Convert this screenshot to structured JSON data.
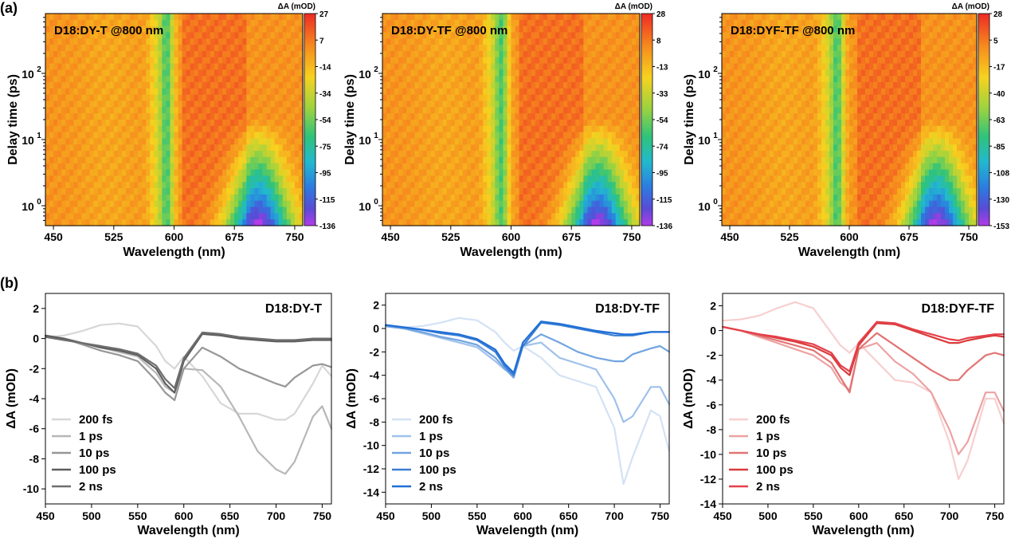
{
  "panel_labels": [
    "(a)",
    "(b)"
  ],
  "chart_data": [
    {
      "type": "heatmap",
      "title": "D18:DY-T @800 nm",
      "xlabel": "Wavelength (nm)",
      "ylabel": "Delay time (ps)",
      "xticks": [
        450,
        525,
        600,
        675,
        750
      ],
      "xlim": [
        440,
        760
      ],
      "yscale": "log",
      "yticks": [
        {
          "exp": 0,
          "value": 1
        },
        {
          "exp": 1,
          "value": 10
        },
        {
          "exp": 2,
          "value": 100
        }
      ],
      "yticks_label_base": "10",
      "ylim": [
        0.5,
        800
      ],
      "colorbar": {
        "label": "ΔA (mOD)",
        "ticks": [
          27,
          7,
          -14,
          -34,
          -54,
          -75,
          -95,
          -115,
          -136
        ]
      },
      "features": {
        "bleach_center": 591,
        "deep_center": 705,
        "deep_min": -136
      }
    },
    {
      "type": "heatmap",
      "title": "D18:DY-TF @800 nm",
      "xlabel": "Wavelength (nm)",
      "ylabel": "Delay time (ps)",
      "xticks": [
        450,
        525,
        600,
        675,
        750
      ],
      "xlim": [
        440,
        760
      ],
      "yscale": "log",
      "yticks": [
        {
          "exp": 0,
          "value": 1
        },
        {
          "exp": 1,
          "value": 10
        },
        {
          "exp": 2,
          "value": 100
        }
      ],
      "yticks_label_base": "10",
      "ylim": [
        0.5,
        800
      ],
      "colorbar": {
        "label": "ΔA (mOD)",
        "ticks": [
          28,
          8,
          -13,
          -33,
          -54,
          -74,
          -95,
          -115,
          -136
        ]
      },
      "features": {
        "bleach_center": 588,
        "deep_center": 708,
        "deep_min": -136
      }
    },
    {
      "type": "heatmap",
      "title": "D18:DYF-TF @800 nm",
      "xlabel": "Wavelength (nm)",
      "ylabel": "Delay time (ps)",
      "xticks": [
        450,
        525,
        600,
        675,
        750
      ],
      "xlim": [
        440,
        760
      ],
      "yscale": "log",
      "yticks": [
        {
          "exp": 0,
          "value": 1
        },
        {
          "exp": 1,
          "value": 10
        },
        {
          "exp": 2,
          "value": 100
        }
      ],
      "yticks_label_base": "10",
      "ylim": [
        0.5,
        800
      ],
      "colorbar": {
        "label": "ΔA (mOD)",
        "ticks": [
          28,
          5,
          -17,
          -40,
          -63,
          -85,
          -108,
          -130,
          -153
        ]
      },
      "features": {
        "bleach_center": 585,
        "deep_center": 710,
        "deep_min": -153
      }
    },
    {
      "type": "line",
      "title": "D18:DY-T",
      "xlabel": "Wavelength (nm)",
      "ylabel": "ΔA (mOD)",
      "xlim": [
        450,
        760
      ],
      "ylim": [
        -11,
        3
      ],
      "xticks": [
        450,
        500,
        550,
        600,
        650,
        700,
        750
      ],
      "yticks": [
        2,
        0,
        -2,
        -4,
        -6,
        -8,
        -10
      ],
      "legend_position": "bottom-left",
      "x": [
        450,
        470,
        490,
        510,
        530,
        550,
        570,
        580,
        590,
        600,
        620,
        640,
        660,
        680,
        700,
        710,
        720,
        740,
        750,
        760
      ],
      "series": [
        {
          "name": "200 fs",
          "color": "#d7d7d7",
          "values": [
            0.1,
            0.2,
            0.5,
            0.9,
            1.0,
            0.8,
            -0.5,
            -1.5,
            -2.0,
            -1.2,
            -2.5,
            -4.3,
            -5.0,
            -5.0,
            -5.4,
            -5.4,
            -5.0,
            -3.0,
            -1.8,
            -2.5
          ]
        },
        {
          "name": "1 ps",
          "color": "#b7b7b7",
          "values": [
            0.2,
            0.0,
            -0.3,
            -0.6,
            -0.9,
            -1.2,
            -2.3,
            -3.2,
            -3.6,
            -2.0,
            -2.1,
            -3.2,
            -5.2,
            -7.5,
            -8.7,
            -9.0,
            -8.2,
            -5.2,
            -4.5,
            -6.0
          ]
        },
        {
          "name": "10 ps",
          "color": "#979797",
          "values": [
            0.2,
            0.0,
            -0.4,
            -0.8,
            -1.1,
            -1.5,
            -2.8,
            -3.6,
            -4.1,
            -2.0,
            -0.6,
            -1.2,
            -2.0,
            -2.5,
            -3.0,
            -3.2,
            -2.6,
            -1.8,
            -1.7,
            -1.9
          ]
        },
        {
          "name": "100 ps",
          "color": "#5e5e5e",
          "values": [
            0.2,
            0.0,
            -0.3,
            -0.6,
            -0.8,
            -1.1,
            -2.0,
            -3.0,
            -3.6,
            -1.5,
            0.3,
            0.2,
            0.0,
            -0.1,
            -0.2,
            -0.2,
            -0.2,
            -0.1,
            -0.1,
            -0.1
          ]
        },
        {
          "name": "2 ns",
          "color": "#6e6e6e",
          "values": [
            0.1,
            -0.1,
            -0.3,
            -0.5,
            -0.7,
            -1.0,
            -1.8,
            -2.7,
            -3.3,
            -1.3,
            0.4,
            0.3,
            0.1,
            0.0,
            -0.1,
            -0.1,
            -0.1,
            0.0,
            0.0,
            0.0
          ]
        }
      ]
    },
    {
      "type": "line",
      "title": "D18:DY-TF",
      "xlabel": "Wavelength (nm)",
      "ylabel": "ΔA (mOD)",
      "xlim": [
        450,
        760
      ],
      "ylim": [
        -15,
        3
      ],
      "xticks": [
        450,
        500,
        550,
        600,
        650,
        700,
        750
      ],
      "yticks": [
        2,
        0,
        -2,
        -4,
        -6,
        -8,
        -10,
        -12,
        -14
      ],
      "legend_position": "bottom-left",
      "x": [
        450,
        470,
        490,
        510,
        530,
        550,
        570,
        580,
        590,
        600,
        620,
        640,
        660,
        680,
        700,
        710,
        720,
        740,
        750,
        760
      ],
      "series": [
        {
          "name": "200 fs",
          "color": "#d3e2f5",
          "values": [
            0.2,
            0.1,
            0.2,
            0.5,
            0.9,
            0.7,
            -0.3,
            -1.2,
            -1.9,
            -1.5,
            -2.5,
            -4.0,
            -4.5,
            -5.0,
            -8.5,
            -13.3,
            -11.0,
            -7.0,
            -7.5,
            -10.5
          ]
        },
        {
          "name": "1 ps",
          "color": "#9fc1eb",
          "values": [
            0.2,
            0.0,
            -0.4,
            -0.8,
            -1.2,
            -1.6,
            -2.8,
            -3.5,
            -4.0,
            -1.5,
            -1.2,
            -2.5,
            -3.0,
            -3.5,
            -6.0,
            -8.0,
            -7.5,
            -5.0,
            -5.0,
            -6.5
          ]
        },
        {
          "name": "10 ps",
          "color": "#72a4e0",
          "values": [
            0.2,
            0.0,
            -0.3,
            -0.7,
            -1.0,
            -1.4,
            -2.5,
            -3.4,
            -4.2,
            -1.5,
            -0.5,
            -1.2,
            -2.0,
            -2.5,
            -2.8,
            -2.8,
            -2.2,
            -1.7,
            -1.5,
            -2.0
          ]
        },
        {
          "name": "100 ps",
          "color": "#3c7fd3",
          "values": [
            0.3,
            0.1,
            -0.1,
            -0.4,
            -0.6,
            -1.0,
            -2.0,
            -3.2,
            -4.0,
            -1.5,
            0.5,
            0.3,
            0.0,
            -0.3,
            -0.6,
            -0.6,
            -0.6,
            -0.3,
            -0.3,
            -0.3
          ]
        },
        {
          "name": "2 ns",
          "color": "#1f6fd6",
          "values": [
            0.3,
            0.1,
            -0.1,
            -0.3,
            -0.5,
            -0.9,
            -1.8,
            -3.0,
            -3.8,
            -1.2,
            0.6,
            0.4,
            0.1,
            -0.2,
            -0.4,
            -0.5,
            -0.5,
            -0.3,
            -0.3,
            -0.3
          ]
        }
      ]
    },
    {
      "type": "line",
      "title": "D18:DYF-TF",
      "xlabel": "Wavelength (nm)",
      "ylabel": "ΔA (mOD)",
      "xlim": [
        450,
        760
      ],
      "ylim": [
        -14,
        3
      ],
      "xticks": [
        450,
        500,
        550,
        600,
        650,
        700,
        750
      ],
      "yticks": [
        2,
        0,
        -2,
        -4,
        -6,
        -8,
        -10,
        -12,
        -14
      ],
      "legend_position": "bottom-left",
      "x": [
        450,
        470,
        490,
        510,
        530,
        550,
        570,
        580,
        590,
        600,
        620,
        640,
        660,
        680,
        700,
        710,
        720,
        740,
        750,
        760
      ],
      "series": [
        {
          "name": "200 fs",
          "color": "#f7cfcf",
          "values": [
            0.8,
            0.9,
            1.2,
            1.8,
            2.3,
            1.8,
            -0.2,
            -1.2,
            -1.8,
            -1.0,
            -2.5,
            -4.0,
            -4.2,
            -5.0,
            -9.0,
            -12.0,
            -10.5,
            -5.5,
            -5.5,
            -7.5
          ]
        },
        {
          "name": "1 ps",
          "color": "#eda2a2",
          "values": [
            0.3,
            0.0,
            -0.5,
            -1.0,
            -1.5,
            -2.0,
            -3.0,
            -4.2,
            -4.8,
            -1.5,
            -1.0,
            -2.5,
            -3.5,
            -5.0,
            -8.0,
            -10.0,
            -9.0,
            -5.0,
            -5.0,
            -6.5
          ]
        },
        {
          "name": "10 ps",
          "color": "#e17373",
          "values": [
            0.3,
            0.0,
            -0.4,
            -0.8,
            -1.2,
            -1.6,
            -2.6,
            -3.8,
            -5.0,
            -1.5,
            -0.2,
            -1.2,
            -2.2,
            -3.2,
            -4.0,
            -4.0,
            -3.2,
            -2.0,
            -1.8,
            -2.0
          ]
        },
        {
          "name": "100 ps",
          "color": "#d93b3b",
          "values": [
            0.3,
            0.0,
            -0.3,
            -0.6,
            -0.9,
            -1.3,
            -2.0,
            -3.0,
            -3.6,
            -1.2,
            0.6,
            0.5,
            0.0,
            -0.5,
            -1.0,
            -1.0,
            -0.8,
            -0.5,
            -0.4,
            -0.5
          ]
        },
        {
          "name": "2 ns",
          "color": "#e5404a",
          "values": [
            0.3,
            0.0,
            -0.3,
            -0.5,
            -0.8,
            -1.1,
            -1.8,
            -2.8,
            -3.3,
            -1.0,
            0.7,
            0.6,
            0.1,
            -0.3,
            -0.7,
            -0.8,
            -0.6,
            -0.4,
            -0.3,
            -0.3
          ]
        }
      ]
    }
  ]
}
